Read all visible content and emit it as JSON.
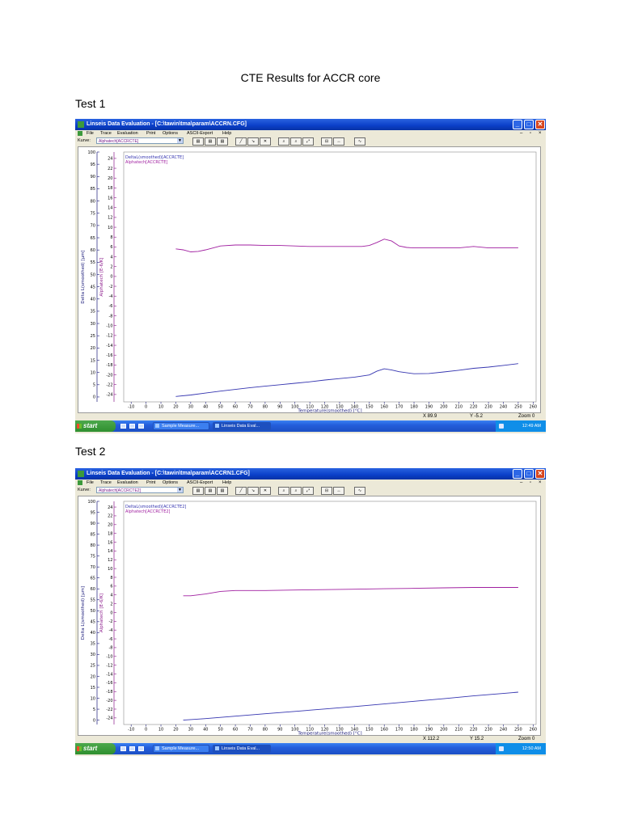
{
  "document": {
    "title": "CTE Results for ACCR core",
    "tests": [
      {
        "label": "Test 1",
        "window": {
          "title": "Linseis Data Evaluation - [C:\\tawin\\tma\\param\\ACCRN.CFG]",
          "menu": [
            "File",
            "Trace",
            "Evaluation",
            "Print",
            "Options",
            "ASCII-Export",
            "Help"
          ],
          "kurve_label": "Kurve:",
          "kurve_value": "Alphatech[ACCRCTE]",
          "status": {
            "x": "X  89.9",
            "y": "Y  -5.2",
            "zoom": "Zoom 0"
          },
          "taskbar": {
            "start": "start",
            "tasks": [
              "Sample Measure...",
              "Linseis Data Eval..."
            ],
            "time": "12:49 AM"
          }
        }
      },
      {
        "label": "Test 2",
        "window": {
          "title": "Linseis Data Evaluation - [C:\\tawin\\tma\\param\\ACCRN1.CFG]",
          "menu": [
            "File",
            "Trace",
            "Evaluation",
            "Print",
            "Options",
            "ASCII-Export",
            "Help"
          ],
          "kurve_label": "Kurve:",
          "kurve_value": "Alphatech[ACCRCTE2]",
          "status": {
            "x": "X  112.2",
            "y": "Y  15.2",
            "zoom": "Zoom 0"
          },
          "taskbar": {
            "start": "start",
            "tasks": [
              "Sample Measure...",
              "Linseis Data Eval..."
            ],
            "time": "12:50 AM"
          }
        }
      }
    ]
  },
  "colors": {
    "alpha_curve": "#a01fa0",
    "delta_curve": "#3535b0",
    "left_axis": "#1a1a7a",
    "right_axis": "#8b1a8b"
  },
  "chart_data": [
    {
      "type": "line",
      "title": "",
      "xlabel": "Temperature(smoothed) [°C]",
      "ylabel_left": "Delta L(smoothed) [µm]",
      "ylabel_right": "Alphatech [E-6/K]",
      "xlim": [
        -15,
        262
      ],
      "ylim_left": [
        -2,
        100
      ],
      "ylim_right": [
        -25.5,
        25.3
      ],
      "x_ticks": [
        -10,
        0,
        10,
        20,
        30,
        40,
        50,
        60,
        70,
        80,
        90,
        100,
        110,
        120,
        130,
        140,
        150,
        160,
        170,
        180,
        190,
        200,
        210,
        220,
        230,
        240,
        250,
        260
      ],
      "y_left_ticks": [
        0,
        5,
        10,
        15,
        20,
        25,
        30,
        35,
        40,
        45,
        50,
        55,
        60,
        65,
        70,
        75,
        80,
        85,
        90,
        95,
        100
      ],
      "y_right_ticks": [
        -24,
        -22,
        -20,
        -18,
        -16,
        -14,
        -12,
        -10,
        -8,
        -6,
        -4,
        -2,
        0,
        2,
        4,
        6,
        8,
        10,
        12,
        14,
        16,
        18,
        20,
        22,
        24
      ],
      "legend": [
        "DeltaL(smoothed)[ACCRCTE]",
        "Alphatech[ACCRCTE]"
      ],
      "legend_position": "top-left",
      "grid": false,
      "series": [
        {
          "name": "Alphatech[ACCRCTE]",
          "axis": "right",
          "x": [
            20,
            25,
            30,
            35,
            40,
            50,
            60,
            70,
            80,
            90,
            100,
            110,
            120,
            130,
            140,
            145,
            150,
            155,
            160,
            165,
            170,
            175,
            180,
            190,
            200,
            210,
            220,
            230,
            240,
            250
          ],
          "values": [
            5.6,
            5.4,
            5.0,
            5.1,
            5.4,
            6.2,
            6.4,
            6.4,
            6.3,
            6.3,
            6.2,
            6.1,
            6.1,
            6.1,
            6.1,
            6.1,
            6.3,
            6.9,
            7.6,
            7.2,
            6.2,
            5.9,
            5.8,
            5.8,
            5.8,
            5.8,
            6.1,
            5.8,
            5.8,
            5.8
          ]
        },
        {
          "name": "DeltaL(smoothed)[ACCRCTE]",
          "axis": "left",
          "x": [
            20,
            30,
            40,
            50,
            60,
            70,
            80,
            90,
            100,
            110,
            120,
            130,
            140,
            150,
            155,
            160,
            165,
            170,
            180,
            190,
            200,
            210,
            220,
            230,
            240,
            250
          ],
          "values": [
            0.2,
            0.8,
            1.6,
            2.4,
            3.1,
            3.8,
            4.4,
            5.0,
            5.6,
            6.2,
            6.9,
            7.5,
            8.1,
            9.0,
            10.5,
            11.5,
            11.0,
            10.3,
            9.5,
            9.6,
            10.2,
            10.9,
            11.7,
            12.2,
            12.9,
            13.6
          ]
        }
      ]
    },
    {
      "type": "line",
      "title": "",
      "xlabel": "Temperature(smoothed) [°C]",
      "ylabel_left": "Delta L(smoothed) [µm]",
      "ylabel_right": "Alphatech [E-6/K]",
      "xlim": [
        -15,
        262
      ],
      "ylim_left": [
        -2,
        100
      ],
      "ylim_right": [
        -25.5,
        25.3
      ],
      "x_ticks": [
        -10,
        0,
        10,
        20,
        30,
        40,
        50,
        60,
        70,
        80,
        90,
        100,
        110,
        120,
        130,
        140,
        150,
        160,
        170,
        180,
        190,
        200,
        210,
        220,
        230,
        240,
        250,
        260
      ],
      "y_left_ticks": [
        0,
        5,
        10,
        15,
        20,
        25,
        30,
        35,
        40,
        45,
        50,
        55,
        60,
        65,
        70,
        75,
        80,
        85,
        90,
        95,
        100
      ],
      "y_right_ticks": [
        -24,
        -22,
        -20,
        -18,
        -16,
        -14,
        -12,
        -10,
        -8,
        -6,
        -4,
        -2,
        0,
        2,
        4,
        6,
        8,
        10,
        12,
        14,
        16,
        18,
        20,
        22,
        24
      ],
      "legend": [
        "DeltaL(smoothed)[ACCRCTE2]",
        "Alphatech[ACCRCTE2]"
      ],
      "legend_position": "top-left",
      "grid": false,
      "series": [
        {
          "name": "Alphatech[ACCRCTE2]",
          "axis": "right",
          "x": [
            25,
            30,
            40,
            50,
            60,
            80,
            100,
            120,
            140,
            160,
            180,
            200,
            220,
            240,
            250
          ],
          "values": [
            3.8,
            3.8,
            4.2,
            4.8,
            5.0,
            5.0,
            5.1,
            5.2,
            5.3,
            5.4,
            5.5,
            5.6,
            5.7,
            5.7,
            5.7
          ]
        },
        {
          "name": "DeltaL(smoothed)[ACCRCTE2]",
          "axis": "left",
          "x": [
            25,
            40,
            60,
            80,
            100,
            120,
            140,
            160,
            180,
            200,
            220,
            240,
            250
          ],
          "values": [
            0.0,
            0.7,
            1.8,
            2.9,
            4.0,
            5.1,
            6.2,
            7.4,
            8.6,
            9.8,
            11.1,
            12.2,
            12.8
          ]
        }
      ]
    }
  ]
}
